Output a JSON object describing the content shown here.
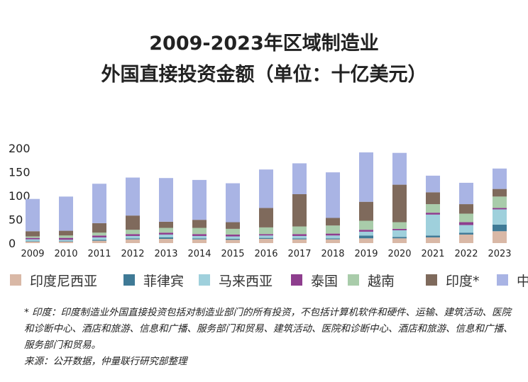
{
  "title_line1": "2009-2023年区域制造业",
  "title_line2": "外国直接投资金额（单位：十亿美元）",
  "chart_data": {
    "type": "bar",
    "stacked": true,
    "categories": [
      "2009",
      "2010",
      "2011",
      "2012",
      "2013",
      "2014",
      "2015",
      "2016",
      "2017",
      "2018",
      "2019",
      "2020",
      "2021",
      "2022",
      "2023"
    ],
    "ylim": [
      0,
      200
    ],
    "yticks": [
      "0",
      "50",
      "100",
      "150",
      "200"
    ],
    "grid": false,
    "legend_position": "bottom",
    "series": [
      {
        "name": "印度尼西亚",
        "color": "#d9b8a6",
        "values": [
          3,
          3,
          5,
          8,
          9,
          8,
          7,
          9,
          8,
          8,
          10,
          10,
          12,
          18,
          25
        ]
      },
      {
        "name": "菲律宾",
        "color": "#3f7a96",
        "values": [
          1,
          1,
          2,
          2,
          3,
          2,
          2,
          2,
          2,
          2,
          6,
          3,
          4,
          4,
          14
        ]
      },
      {
        "name": "马来西亚",
        "color": "#9fd0dc",
        "values": [
          4,
          3,
          5,
          5,
          6,
          5,
          5,
          5,
          5,
          6,
          8,
          14,
          44,
          16,
          32
        ]
      },
      {
        "name": "泰国",
        "color": "#8e3e8e",
        "values": [
          3,
          4,
          4,
          4,
          4,
          4,
          4,
          3,
          4,
          4,
          4,
          3,
          4,
          6,
          3
        ]
      },
      {
        "name": "越南",
        "color": "#a9ccaa",
        "values": [
          3,
          5,
          6,
          9,
          10,
          13,
          12,
          14,
          16,
          17,
          19,
          14,
          18,
          18,
          24
        ]
      },
      {
        "name": "印度*",
        "color": "#7f6a5c",
        "values": [
          11,
          10,
          20,
          30,
          13,
          17,
          14,
          41,
          68,
          16,
          40,
          79,
          25,
          20,
          16
        ]
      },
      {
        "name": "中国",
        "color": "#a9b4e4",
        "values": [
          68,
          72,
          83,
          80,
          92,
          84,
          82,
          81,
          65,
          96,
          104,
          67,
          35,
          45,
          43
        ]
      }
    ]
  },
  "notes": {
    "line1": "* 印度：印度制造业外国直接投资包括对制造业部门的所有投资，不包括计算机软件和硬件、运输、建筑活动、医院和诊断中心、酒店和旅游、信息和广播、服务部门和贸易、建筑活动、医院和诊断中心、酒店和旅游、信息和广播、服务部门和贸易。",
    "line2": "来源：公开数据，仲量联行研究部整理"
  }
}
